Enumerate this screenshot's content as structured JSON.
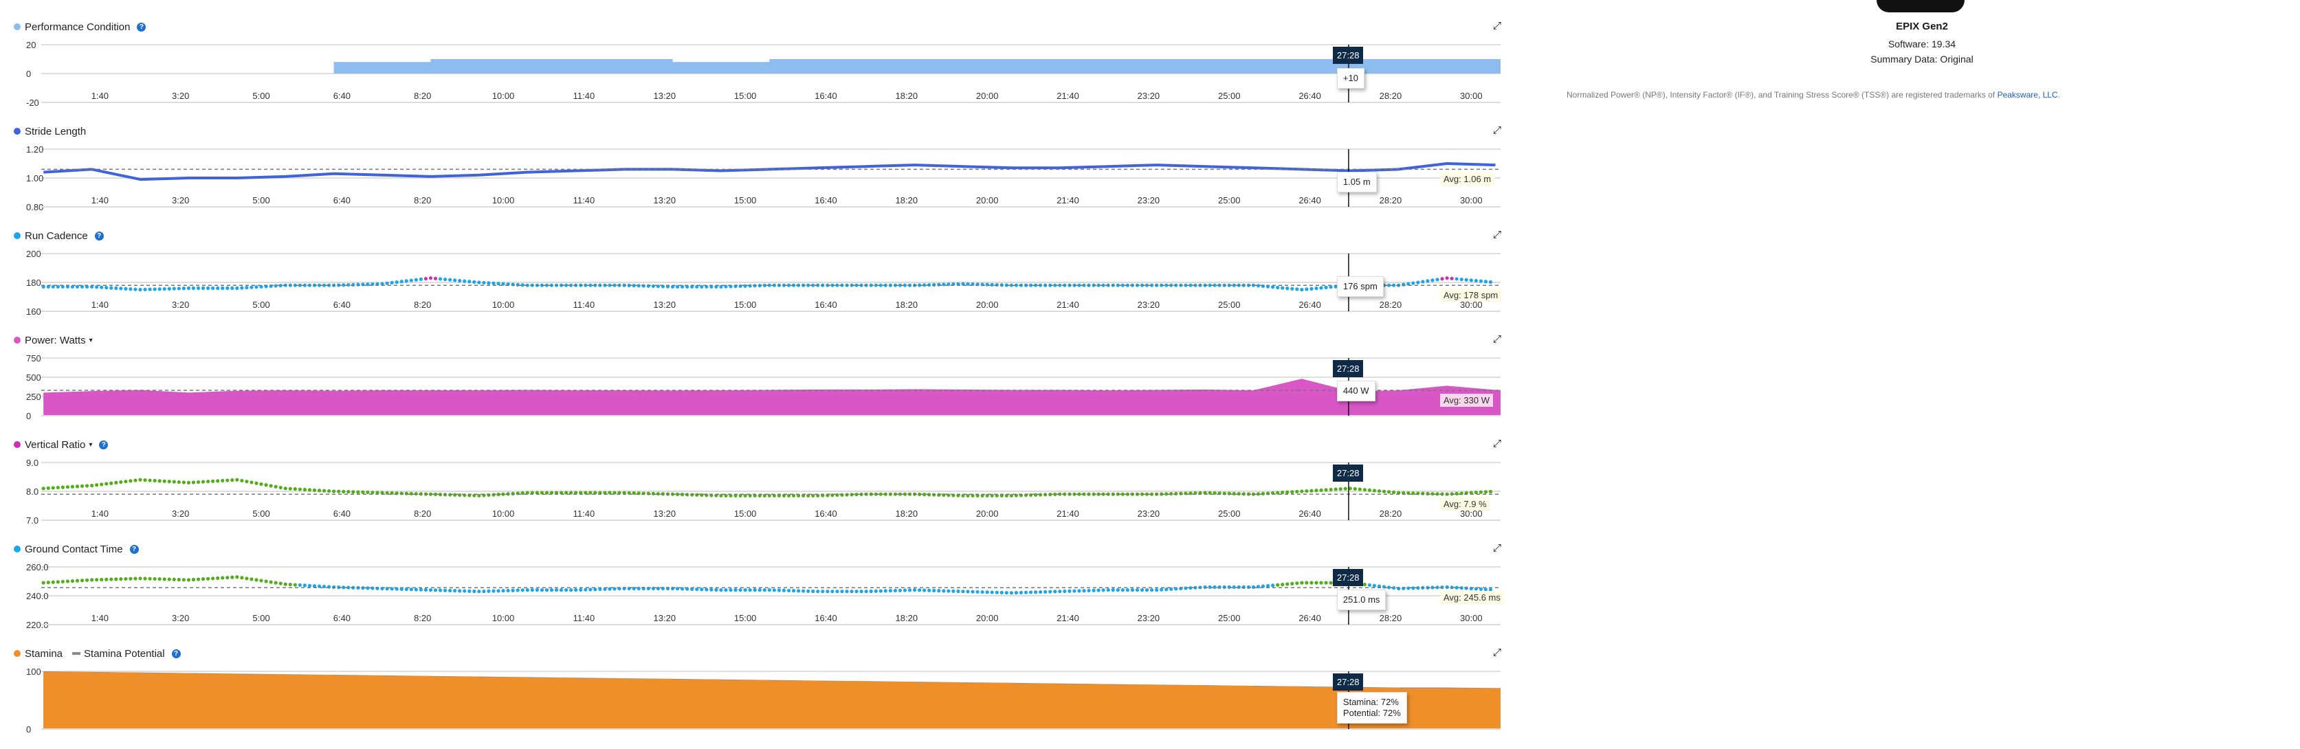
{
  "cursor_time": "27:28",
  "time_ticks": [
    "1:40",
    "3:20",
    "5:00",
    "6:40",
    "8:20",
    "10:00",
    "11:40",
    "13:20",
    "15:00",
    "16:40",
    "18:20",
    "20:00",
    "21:40",
    "23:20",
    "25:00",
    "26:40",
    "28:20",
    "30:00"
  ],
  "device": {
    "name": "EPIX Gen2",
    "software": "Software: 19.34",
    "summary": "Summary Data: Original"
  },
  "trademark": {
    "text": "Normalized Power® (NP®), Intensity Factor® (IF®), and Training Stress Score® (TSS®) are registered trademarks of ",
    "link": "Peaksware, LLC",
    "end": "."
  },
  "chart_data": [
    {
      "type": "area",
      "title": "Performance Condition",
      "help": "?",
      "color": "#8dbdee",
      "yticks": [
        "20",
        "0",
        "-20"
      ],
      "ylim": [
        -20,
        20
      ],
      "x": [
        "0:30",
        "1:30",
        "2:30",
        "3:30",
        "4:30",
        "5:30",
        "6:30",
        "7:30",
        "8:30",
        "9:30",
        "10:30",
        "11:30",
        "12:30",
        "13:30",
        "14:30",
        "15:30",
        "16:30",
        "17:30",
        "18:30",
        "19:30",
        "20:30",
        "21:30",
        "22:30",
        "23:30",
        "24:30",
        "25:30",
        "26:30",
        "27:30",
        "28:30",
        "29:30",
        "30:30"
      ],
      "y": [
        null,
        null,
        null,
        null,
        null,
        null,
        8,
        8,
        10,
        10,
        10,
        10,
        10,
        8,
        8,
        10,
        10,
        10,
        10,
        10,
        10,
        10,
        10,
        10,
        10,
        10,
        10,
        10,
        10,
        10,
        10
      ],
      "tooltip": "+10",
      "show_cursor_label": true
    },
    {
      "type": "line",
      "title": "Stride Length",
      "color": "#3f63de",
      "yticks": [
        "1.20",
        "1.00",
        "0.80"
      ],
      "ylim": [
        0.8,
        1.2
      ],
      "x": [
        "0:30",
        "1:30",
        "2:30",
        "3:30",
        "4:30",
        "5:30",
        "6:30",
        "7:30",
        "8:30",
        "9:30",
        "10:30",
        "11:30",
        "12:30",
        "13:30",
        "14:30",
        "15:30",
        "16:30",
        "17:30",
        "18:30",
        "19:30",
        "20:30",
        "21:30",
        "22:30",
        "23:30",
        "24:30",
        "25:30",
        "26:30",
        "27:30",
        "28:30",
        "29:30",
        "30:30"
      ],
      "y": [
        1.04,
        1.06,
        0.99,
        1.0,
        1.0,
        1.01,
        1.03,
        1.02,
        1.01,
        1.02,
        1.04,
        1.05,
        1.06,
        1.06,
        1.05,
        1.06,
        1.07,
        1.08,
        1.09,
        1.08,
        1.07,
        1.07,
        1.08,
        1.09,
        1.08,
        1.07,
        1.06,
        1.05,
        1.06,
        1.1,
        1.09
      ],
      "avg": 1.06,
      "avg_label": "Avg: 1.06 m",
      "tooltip": "1.05 m",
      "show_cursor_label": false
    },
    {
      "type": "scatter",
      "title": "Run Cadence",
      "help": "?",
      "color": "#1ca6ea",
      "color_high": "#cc2eb4",
      "color_low": "#52ae16",
      "yticks": [
        "200",
        "180",
        "160"
      ],
      "ylim": [
        160,
        200
      ],
      "x": [
        "0:30",
        "1:30",
        "2:30",
        "3:30",
        "4:30",
        "5:30",
        "6:30",
        "7:30",
        "8:30",
        "9:30",
        "10:30",
        "11:30",
        "12:30",
        "13:30",
        "14:30",
        "15:30",
        "16:30",
        "17:30",
        "18:30",
        "19:30",
        "20:30",
        "21:30",
        "22:30",
        "23:30",
        "24:30",
        "25:30",
        "26:30",
        "27:30",
        "28:30",
        "29:30",
        "30:30"
      ],
      "y": [
        177,
        177,
        175,
        176,
        176,
        178,
        178,
        179,
        183,
        180,
        178,
        178,
        178,
        177,
        177,
        178,
        178,
        178,
        178,
        179,
        178,
        178,
        178,
        178,
        178,
        178,
        175,
        178,
        178,
        183,
        180
      ],
      "avg": 178,
      "avg_label": "Avg: 178 spm",
      "tooltip": "176 spm",
      "show_cursor_label": false
    },
    {
      "type": "area",
      "title": "Power: Watts",
      "dropdown": "▾",
      "color": "#d856c6",
      "yticks": [
        "750",
        "500",
        "250",
        "0"
      ],
      "ylim": [
        0,
        750
      ],
      "x": [
        "0:30",
        "1:30",
        "2:30",
        "3:30",
        "4:30",
        "5:30",
        "6:30",
        "7:30",
        "8:30",
        "9:30",
        "10:30",
        "11:30",
        "12:30",
        "13:30",
        "14:30",
        "15:30",
        "16:30",
        "17:30",
        "18:30",
        "19:30",
        "20:30",
        "21:30",
        "22:30",
        "23:30",
        "24:30",
        "25:30",
        "26:30",
        "27:30",
        "28:30",
        "29:30",
        "30:30"
      ],
      "y": [
        300,
        320,
        335,
        300,
        325,
        330,
        325,
        330,
        330,
        330,
        335,
        330,
        330,
        328,
        330,
        335,
        340,
        340,
        345,
        340,
        335,
        335,
        330,
        335,
        340,
        330,
        480,
        320,
        330,
        390,
        335
      ],
      "avg": 330,
      "avg_label": "Avg: 330 W",
      "tooltip": "440 W",
      "show_cursor_label": true
    },
    {
      "type": "scatter",
      "title": "Vertical Ratio",
      "dropdown": "▾",
      "help": "?",
      "title_dot": "#cc2eb4",
      "color": "#52ae16",
      "yticks": [
        "9.0",
        "8.0",
        "7.0"
      ],
      "ylim": [
        7,
        9
      ],
      "x": [
        "0:30",
        "1:30",
        "2:30",
        "3:30",
        "4:30",
        "5:30",
        "6:30",
        "7:30",
        "8:30",
        "9:30",
        "10:30",
        "11:30",
        "12:30",
        "13:30",
        "14:30",
        "15:30",
        "16:30",
        "17:30",
        "18:30",
        "19:30",
        "20:30",
        "21:30",
        "22:30",
        "23:30",
        "24:30",
        "25:30",
        "26:30",
        "27:30",
        "28:30",
        "29:30",
        "30:30"
      ],
      "y": [
        8.1,
        8.2,
        8.4,
        8.3,
        8.4,
        8.1,
        8.0,
        7.95,
        7.9,
        7.85,
        7.95,
        7.95,
        7.95,
        7.9,
        7.85,
        7.85,
        7.85,
        7.9,
        7.9,
        7.85,
        7.85,
        7.9,
        7.9,
        7.9,
        7.95,
        7.9,
        8.0,
        8.1,
        7.95,
        7.9,
        8.0
      ],
      "avg": 7.9,
      "avg_label": "Avg: 7.9 %",
      "show_cursor_label": true
    },
    {
      "type": "scatter",
      "title": "Ground Contact Time",
      "help": "?",
      "color": "#1ca6ea",
      "color_high": "#52ae16",
      "yticks": [
        "260.0",
        "240.0",
        "220.0"
      ],
      "ylim": [
        220,
        260
      ],
      "x": [
        "0:30",
        "1:30",
        "2:30",
        "3:30",
        "4:30",
        "5:30",
        "6:30",
        "7:30",
        "8:30",
        "9:30",
        "10:30",
        "11:30",
        "12:30",
        "13:30",
        "14:30",
        "15:30",
        "16:30",
        "17:30",
        "18:30",
        "19:30",
        "20:30",
        "21:30",
        "22:30",
        "23:30",
        "24:30",
        "25:30",
        "26:30",
        "27:30",
        "28:30",
        "29:30",
        "30:30"
      ],
      "y": [
        249,
        251,
        252,
        251,
        253,
        248,
        246,
        245,
        244,
        243,
        244,
        244,
        245,
        245,
        244,
        244,
        243,
        243,
        244,
        243,
        242,
        243,
        244,
        244,
        246,
        246,
        249,
        249,
        245,
        246,
        244
      ],
      "avg": 245.6,
      "avg_label": "Avg: 245.6 ms",
      "tooltip": "251.0 ms",
      "show_cursor_label": true
    },
    {
      "type": "area",
      "title": "Stamina",
      "legend2": "Stamina Potential",
      "help": "?",
      "color": "#ee8f2a",
      "color2": "#8a8a8a",
      "yticks": [
        "100",
        "0"
      ],
      "ylim": [
        0,
        100
      ],
      "x": [
        "0:30",
        "1:30",
        "2:30",
        "3:30",
        "4:30",
        "5:30",
        "6:30",
        "7:30",
        "8:30",
        "9:30",
        "10:30",
        "11:30",
        "12:30",
        "13:30",
        "14:30",
        "15:30",
        "16:30",
        "17:30",
        "18:30",
        "19:30",
        "20:30",
        "21:30",
        "22:30",
        "23:30",
        "24:30",
        "25:30",
        "26:30",
        "27:30",
        "28:30",
        "29:30",
        "30:30"
      ],
      "y": [
        99,
        98,
        97,
        96,
        95,
        94,
        93,
        92,
        91,
        90,
        89,
        88,
        87,
        86,
        85,
        84,
        83,
        82,
        81,
        80,
        79,
        78,
        77,
        76,
        75,
        74,
        73,
        72,
        71,
        71,
        70
      ],
      "y2": [
        100,
        99,
        98,
        97,
        96,
        95,
        94,
        93,
        92,
        91,
        90,
        89,
        88,
        87,
        86,
        85,
        84,
        83,
        82,
        81,
        80,
        79,
        78,
        77,
        76,
        75,
        74,
        73,
        72,
        72,
        71
      ],
      "tooltip": [
        "Stamina: 72%",
        "Potential: 72%"
      ],
      "show_cursor_label": true
    }
  ]
}
